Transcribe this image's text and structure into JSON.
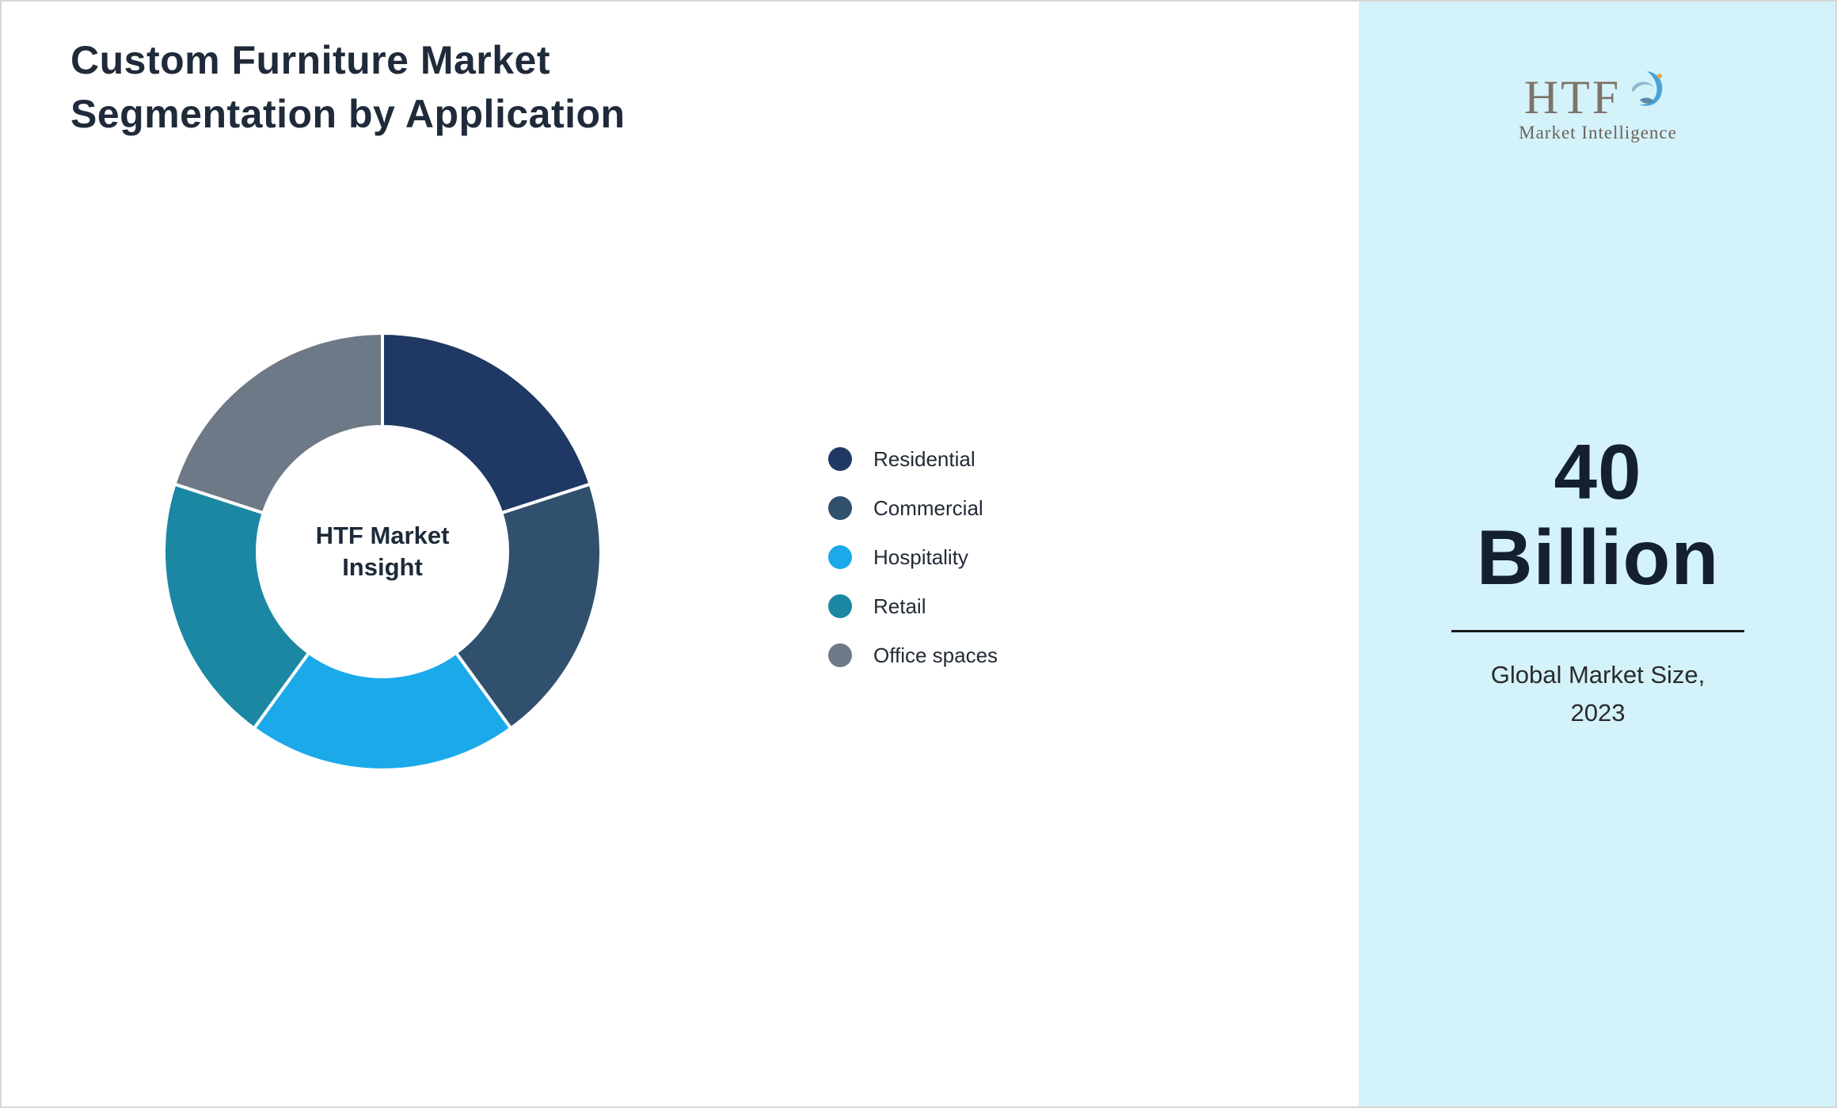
{
  "title": {
    "line1": "Custom Furniture Market",
    "line2": "Segmentation by Application"
  },
  "chart_data": {
    "type": "pie",
    "subtype": "donut",
    "title": "Custom Furniture Market Segmentation by Application",
    "categories": [
      "Residential",
      "Commercial",
      "Hospitality",
      "Retail",
      "Office spaces"
    ],
    "values": [
      20,
      20,
      20,
      20,
      20
    ],
    "colors": [
      "#1f3864",
      "#31506e",
      "#1ca9ea",
      "#1b87a3",
      "#6e7987"
    ],
    "legend_position": "right",
    "center_label_line1": "HTF Market",
    "center_label_line2": "Insight",
    "start_angle": "top",
    "direction": "clockwise"
  },
  "legend": {
    "items": [
      {
        "label": "Residential"
      },
      {
        "label": "Commercial"
      },
      {
        "label": "Hospitality"
      },
      {
        "label": "Retail"
      },
      {
        "label": "Office spaces"
      }
    ]
  },
  "sidebar": {
    "background": "#d3f2fa",
    "logo_text": "HTF",
    "logo_subtext": "Market Intelligence",
    "stat_value_line1": "40",
    "stat_value_line2": "Billion",
    "stat_caption_line1": "Global Market Size,",
    "stat_caption_line2": "2023"
  }
}
